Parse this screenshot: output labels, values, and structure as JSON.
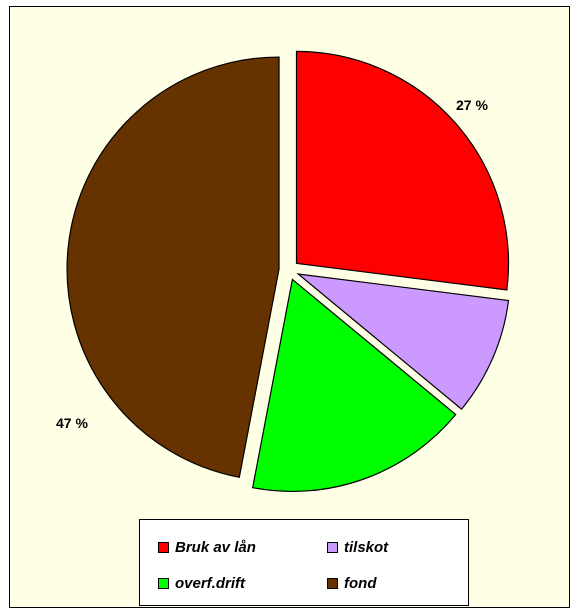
{
  "chart_data": {
    "type": "pie",
    "title": "",
    "slices": [
      {
        "label": "Bruk av lån",
        "value": 27,
        "color": "#FF0000",
        "data_label": "27 %"
      },
      {
        "label": "tilskot",
        "value": 9,
        "color": "#CC99FF",
        "data_label": ""
      },
      {
        "label": "overf.drift",
        "value": 17,
        "color": "#00FF00",
        "data_label": ""
      },
      {
        "label": "fond",
        "value": 47,
        "color": "#663300",
        "data_label": "47 %"
      }
    ],
    "exploded": true,
    "legend_position": "bottom",
    "background_color": "#FFFFE6"
  }
}
